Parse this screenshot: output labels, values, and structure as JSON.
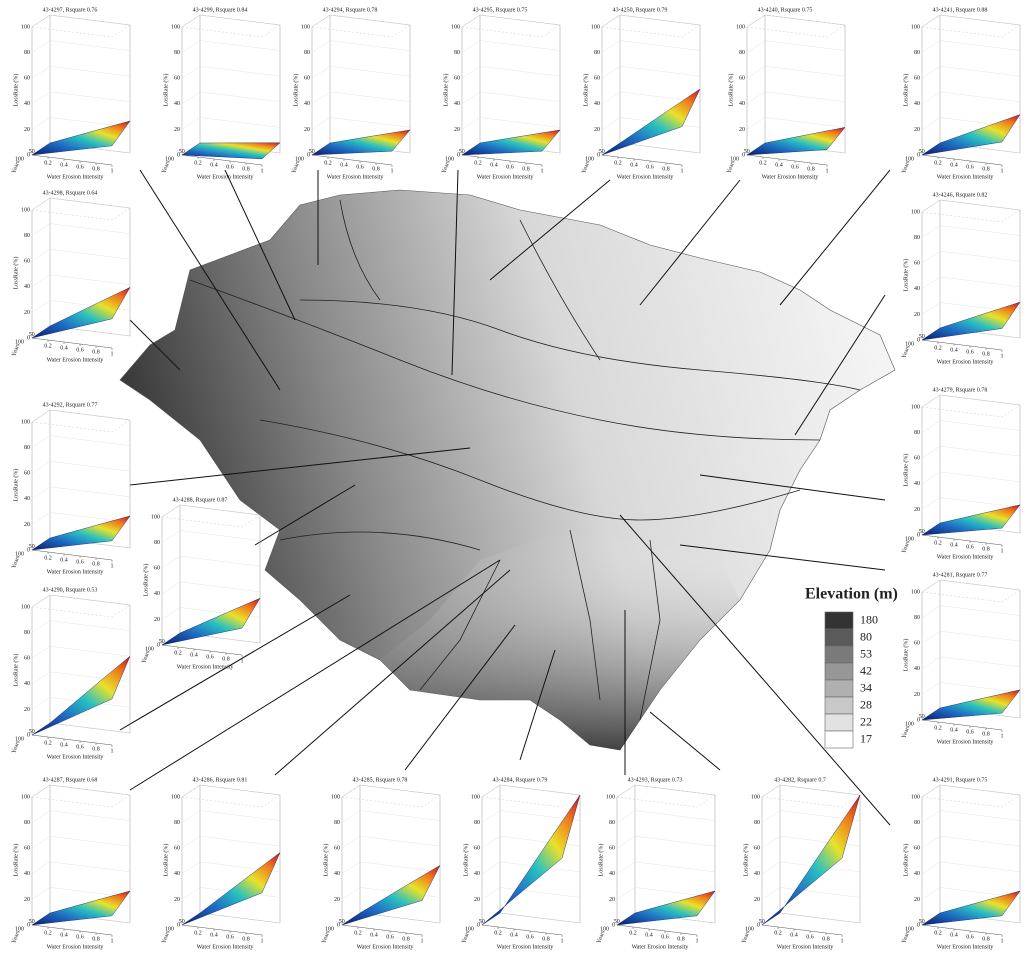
{
  "map": {
    "legend": {
      "title": "Elevation (m)",
      "classes": [
        180,
        80,
        53,
        42,
        34,
        28,
        22,
        17
      ],
      "colors": [
        "#333333",
        "#5a5a5a",
        "#7a7a7a",
        "#979797",
        "#b0b0b0",
        "#c8c8c8",
        "#e2e2e2",
        "#ffffff"
      ]
    },
    "panel_axes": {
      "z_label": "LossRate (%)",
      "x_label": "Water Erosion Intensity",
      "depth_label": "Years",
      "zticks": [
        0,
        20,
        40,
        60,
        80,
        100
      ],
      "xticks": [
        0.2,
        0.4,
        0.6,
        0.8,
        1
      ],
      "depthticks": [
        100,
        50
      ]
    },
    "panels": [
      {
        "title": "43-4297, Rsquare 0.76",
        "surface_max": 25
      },
      {
        "title": "43-4299, Rsquare 0.84",
        "surface_max": 8
      },
      {
        "title": "43-4294, Rsquare 0.78",
        "surface_max": 18
      },
      {
        "title": "43-4295, Rsquare 0.75",
        "surface_max": 18
      },
      {
        "title": "43-4250, Rsquare 0.79",
        "surface_max": 50
      },
      {
        "title": "43-4240, Rsquare 0.75",
        "surface_max": 20
      },
      {
        "title": "43-4241, Rsquare 0.88",
        "surface_max": 30
      },
      {
        "title": "43-4298, Rsquare 0.64",
        "surface_max": 38
      },
      {
        "title": "43-4292, Rsquare 0.77",
        "surface_max": 25
      },
      {
        "title": "43-4290, Rsquare 0.53",
        "surface_max": 60
      },
      {
        "title": "43-4288, Rsquare 0.87",
        "surface_max": 35
      },
      {
        "title": "43-4246, Rsquare 0.82",
        "surface_max": 28
      },
      {
        "title": "43-4279, Rsquare 0.78",
        "surface_max": 22
      },
      {
        "title": "43-4281, Rsquare 0.77",
        "surface_max": 22
      },
      {
        "title": "43-4287, Rsquare 0.68",
        "surface_max": 25
      },
      {
        "title": "43-4286, Rsquare 0.81",
        "surface_max": 55
      },
      {
        "title": "43-4285, Rsquare 0.78",
        "surface_max": 45
      },
      {
        "title": "43-4284, Rsquare 0.79",
        "surface_max": 100
      },
      {
        "title": "43-4293, Rsquare 0.73",
        "surface_max": 25
      },
      {
        "title": "43-4282, Rsquare 0.7",
        "surface_max": 100
      },
      {
        "title": "43-4291, Rsquare 0.75",
        "surface_max": 25
      }
    ]
  }
}
